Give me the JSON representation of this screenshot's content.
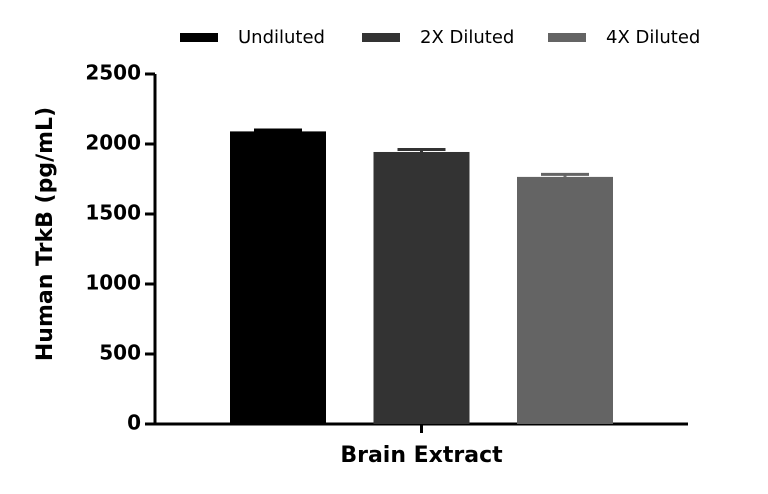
{
  "chart_data": {
    "type": "bar",
    "y_label": "Human TrkB (pg/mL)",
    "categories": [
      "Brain Extract"
    ],
    "series": [
      {
        "name": "Undiluted",
        "color": "#000000",
        "values": [
          2090
        ],
        "errors": [
          10
        ]
      },
      {
        "name": "2X Diluted",
        "color": "#333333",
        "values": [
          1943
        ],
        "errors": [
          18
        ]
      },
      {
        "name": "4X Diluted",
        "color": "#646464",
        "values": [
          1765
        ],
        "errors": [
          18
        ]
      }
    ],
    "ylim": [
      0,
      2500
    ],
    "yticks": [
      0,
      500,
      1000,
      1500,
      2000,
      2500
    ],
    "legend": "top",
    "grid": false
  }
}
